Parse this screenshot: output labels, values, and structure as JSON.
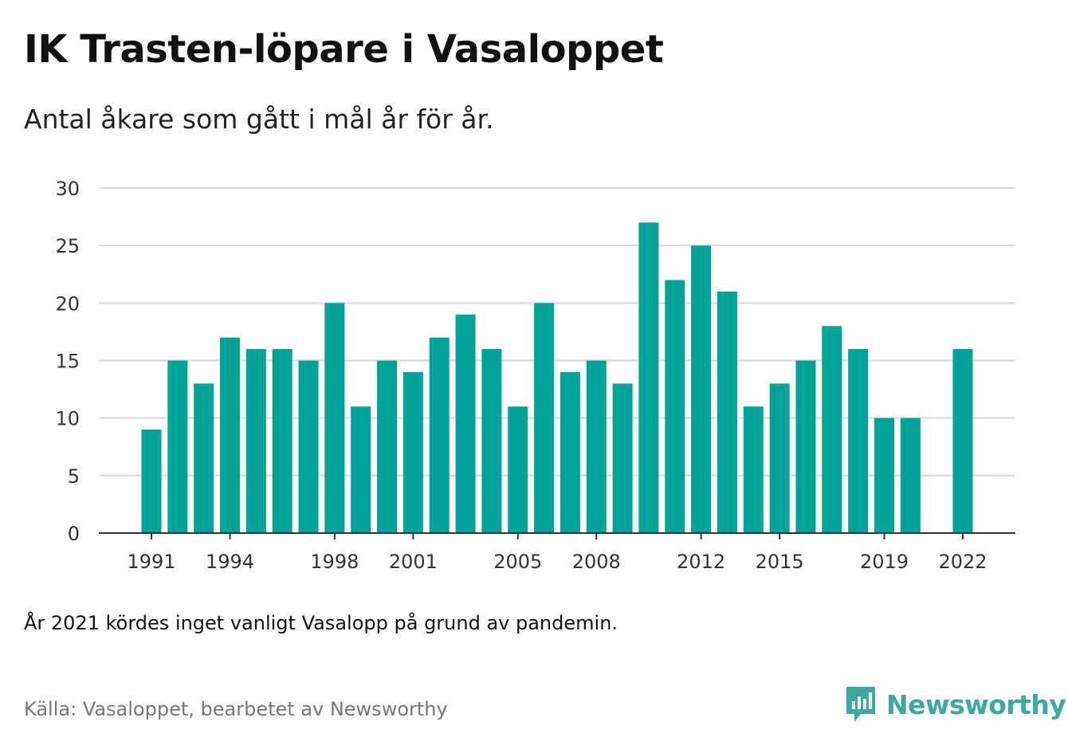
{
  "header": {
    "title": "IK Trasten-löpare i Vasaloppet",
    "subtitle": "Antal åkare som gått i mål år för år."
  },
  "footer": {
    "note": "År 2021 kördes inget vanligt Vasalopp på grund av pandemin.",
    "source": "Källa: Vasaloppet, bearbetet av Newsworthy",
    "brand": "Newsworthy",
    "brand_icon": "newsworthy-logo-icon"
  },
  "colors": {
    "bar": "#00a499",
    "grid": "#d9d9d9",
    "axis": "#333333",
    "brand": "#3ba99c"
  },
  "chart_data": {
    "type": "bar",
    "title": "IK Trasten-löpare i Vasaloppet",
    "subtitle": "Antal åkare som gått i mål år för år.",
    "xlabel": "",
    "ylabel": "",
    "ylim": [
      0,
      30
    ],
    "yticks": [
      0,
      5,
      10,
      15,
      20,
      25,
      30
    ],
    "xtick_labels": [
      "1991",
      "1994",
      "1998",
      "2001",
      "2005",
      "2008",
      "2012",
      "2015",
      "2019",
      "2022"
    ],
    "grid": true,
    "categories": [
      "1991",
      "1992",
      "1993",
      "1994",
      "1995",
      "1996",
      "1997",
      "1998",
      "1999",
      "2000",
      "2001",
      "2002",
      "2003",
      "2004",
      "2005",
      "2006",
      "2007",
      "2008",
      "2009",
      "2010",
      "2011",
      "2012",
      "2013",
      "2014",
      "2015",
      "2016",
      "2017",
      "2018",
      "2019",
      "2020",
      "2021",
      "2022"
    ],
    "values": [
      9,
      15,
      13,
      17,
      16,
      16,
      15,
      20,
      11,
      15,
      14,
      17,
      19,
      16,
      11,
      20,
      14,
      15,
      13,
      27,
      22,
      25,
      21,
      11,
      13,
      15,
      18,
      16,
      10,
      10,
      null,
      16
    ]
  }
}
